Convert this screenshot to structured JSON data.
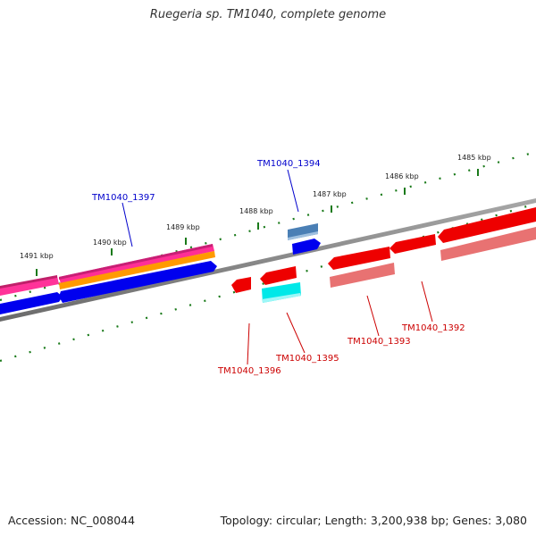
{
  "header": {
    "title": "Ruegeria sp. TM1040, complete genome"
  },
  "footer": {
    "accession": "Accession: NC_008044",
    "stats": "Topology: circular; Length: 3,200,938 bp; Genes: 3,080"
  },
  "kbp_labels": [
    "1485 kbp",
    "1486 kbp",
    "1487 kbp",
    "1488 kbp",
    "1489 kbp",
    "1490 kbp",
    "1491 kbp"
  ],
  "gene_labels": {
    "TM1040_1394": "TM1040_1394",
    "TM1040_1397": "TM1040_1397",
    "TM1040_1396": "TM1040_1396",
    "TM1040_1395": "TM1040_1395",
    "TM1040_1393": "TM1040_1393",
    "TM1040_1392": "TM1040_1392"
  },
  "colors": {
    "forward_label": "#0000cc",
    "reverse_label": "#cc0000",
    "backbone": "#808080",
    "ticks": "#1a7a1a"
  }
}
